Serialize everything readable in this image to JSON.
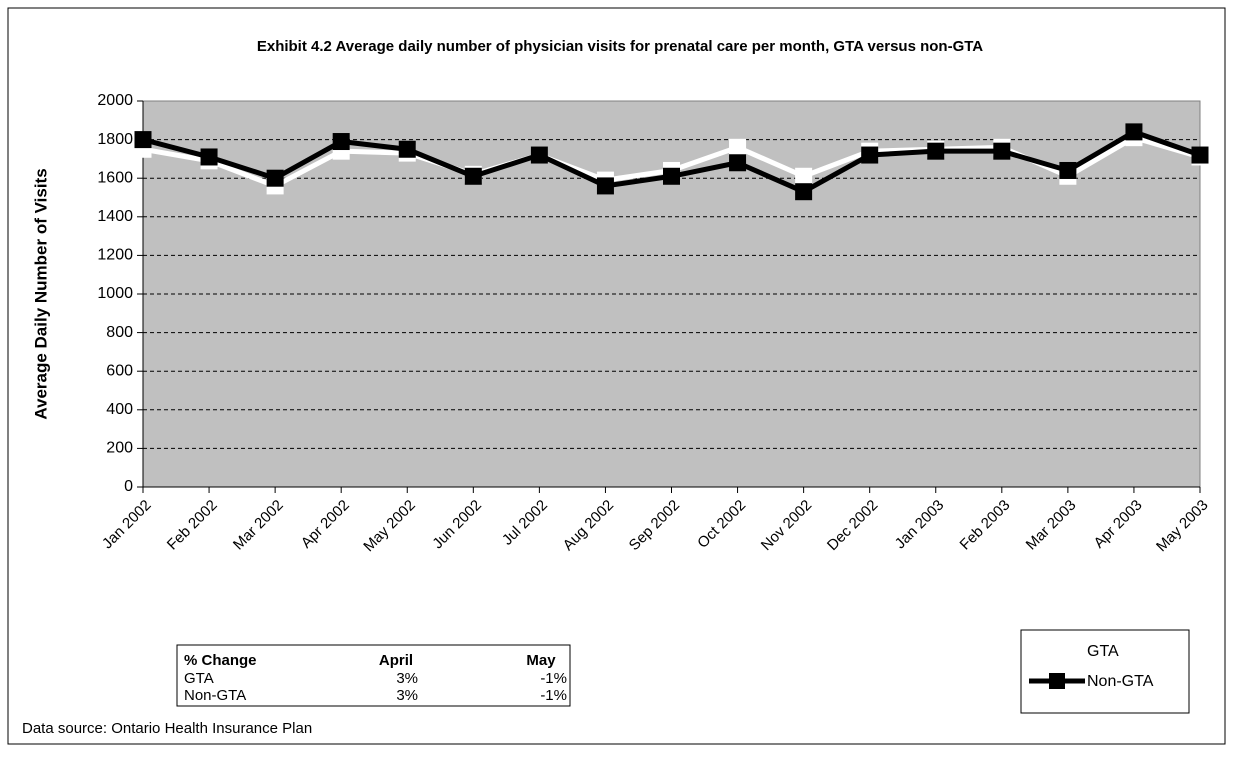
{
  "chart_data": {
    "type": "line",
    "title": "Exhibit 4.2 Average daily number of physician visits for prenatal care per month, GTA versus non-GTA",
    "y_label": "Average Daily Number of Visits",
    "categories": [
      "Jan 2002",
      "Feb 2002",
      "Mar 2002",
      "Apr 2002",
      "May 2002",
      "Jun 2002",
      "Jul 2002",
      "Aug 2002",
      "Sep 2002",
      "Oct 2002",
      "Nov 2002",
      "Dec 2002",
      "Jan 2003",
      "Feb 2003",
      "Mar 2003",
      "Apr 2003",
      "May 2003"
    ],
    "series": [
      {
        "name": "GTA",
        "color": "#ffffff",
        "values": [
          1750,
          1690,
          1560,
          1740,
          1730,
          1620,
          1720,
          1590,
          1640,
          1760,
          1610,
          1740,
          1750,
          1760,
          1610,
          1810,
          1710
        ]
      },
      {
        "name": "Non-GTA",
        "color": "#000000",
        "values": [
          1800,
          1710,
          1600,
          1790,
          1750,
          1610,
          1720,
          1560,
          1610,
          1680,
          1530,
          1720,
          1740,
          1740,
          1640,
          1840,
          1720
        ]
      }
    ],
    "ylim": [
      0,
      2000
    ],
    "yticks": [
      0,
      200,
      400,
      600,
      800,
      1000,
      1200,
      1400,
      1600,
      1800,
      2000
    ],
    "grid": true,
    "legend": "bottom-right",
    "plot_background": "#c0c0c0",
    "source": "Data source: Ontario Health Insurance Plan"
  },
  "table": {
    "header": [
      "% Change",
      "April",
      "May"
    ],
    "rows": [
      [
        "GTA",
        "3%",
        "-1%"
      ],
      [
        "Non-GTA",
        "3%",
        "-1%"
      ]
    ]
  }
}
